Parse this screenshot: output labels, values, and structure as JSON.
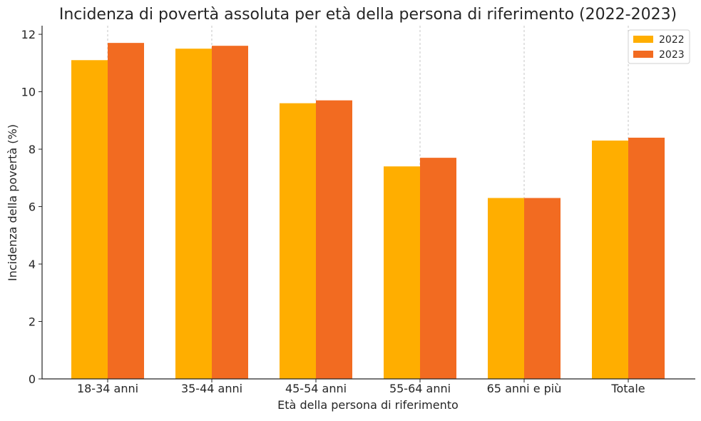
{
  "chart_data": {
    "type": "bar",
    "title": "Incidenza di povertà assoluta per età della persona di riferimento (2022-2023)",
    "xlabel": "Età della persona di riferimento",
    "ylabel": "Incidenza della povertà (%)",
    "categories": [
      "18-34 anni",
      "35-44 anni",
      "45-54 anni",
      "55-64 anni",
      "65 anni e più",
      "Totale"
    ],
    "series": [
      {
        "name": "2022",
        "values": [
          11.1,
          11.5,
          9.6,
          7.4,
          6.3,
          8.3
        ],
        "color": "#FFAE00"
      },
      {
        "name": "2023",
        "values": [
          11.7,
          11.6,
          9.7,
          7.7,
          6.3,
          8.4
        ],
        "color": "#F26B21"
      }
    ],
    "ylim": [
      0,
      12.3
    ],
    "yticks": [
      "0",
      "2",
      "4",
      "6",
      "8",
      "10",
      "12"
    ],
    "grid": "vertical dashed",
    "legend_position": "top-right"
  }
}
